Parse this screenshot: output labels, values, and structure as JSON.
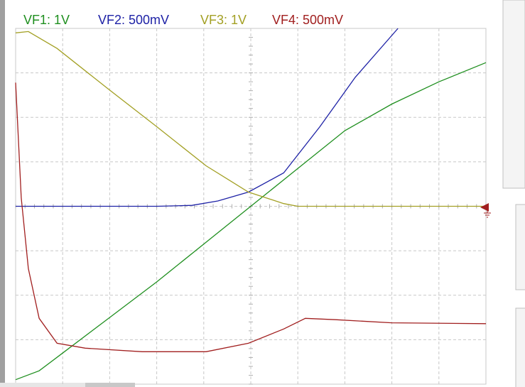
{
  "chart_data": {
    "type": "line",
    "xlim": [
      0,
      10
    ],
    "ylim": [
      -4,
      4
    ],
    "grid": true,
    "series": [
      {
        "name": "VF1: 1V",
        "color": "#1f8f1f",
        "x": [
          0,
          0.5,
          1,
          2,
          3,
          4,
          5,
          6,
          7,
          8,
          9,
          10
        ],
        "values": [
          -3.9,
          -3.7,
          -3.3,
          -2.5,
          -1.7,
          -0.85,
          0,
          0.85,
          1.7,
          2.3,
          2.8,
          3.23
        ]
      },
      {
        "name": "VF2: 500mV",
        "color": "#1e22a6",
        "x": [
          0,
          3.0,
          3.75,
          4.3,
          4.95,
          5.7,
          6.47,
          7.22,
          8.13
        ],
        "values": [
          0,
          0,
          0.02,
          0.12,
          0.32,
          0.75,
          1.79,
          2.9,
          4.0
        ]
      },
      {
        "name": "VF3: 1V",
        "color": "#a3a024",
        "x": [
          0,
          0.27,
          0.88,
          1.93,
          3,
          4.05,
          4.95,
          5.7,
          6,
          10
        ],
        "values": [
          3.9,
          3.93,
          3.55,
          2.67,
          1.79,
          0.91,
          0.32,
          0.06,
          0,
          0
        ]
      },
      {
        "name": "VF4: 500mV",
        "color": "#a11f1f",
        "x": [
          0,
          0.12,
          0.27,
          0.5,
          0.88,
          1.48,
          2.69,
          4.05,
          4.95,
          5.7,
          6.16,
          6.8,
          8,
          10
        ],
        "values": [
          2.78,
          0.19,
          -1.4,
          -2.52,
          -3.08,
          -3.19,
          -3.27,
          -3.27,
          -3.08,
          -2.76,
          -2.52,
          -2.55,
          -2.62,
          -2.64
        ]
      }
    ]
  }
}
